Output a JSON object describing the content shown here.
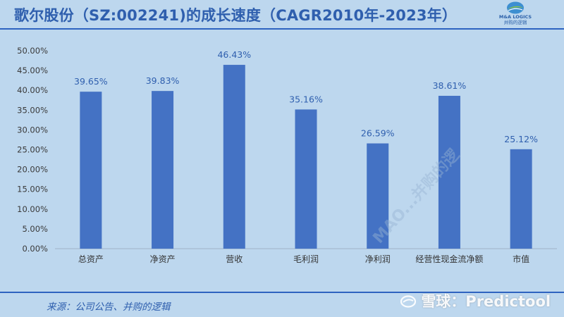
{
  "header": {
    "title": "歌尔股份（SZ:002241)的成长速度（CAGR2010年-2023年）",
    "logo_en": "M&A LOGICS",
    "logo_cn": "并购的逻辑"
  },
  "footer": {
    "source": "来源：公司公告、并购的逻辑",
    "watermark": "雪球：Predictool",
    "diagonal_watermark": "MAO...并购的逻"
  },
  "colors": {
    "bar": "#4472c4",
    "background": "#bdd7ee",
    "accent": "#2e63c0",
    "label": "#2f5fae"
  },
  "chart_data": {
    "type": "bar",
    "categories": [
      "总资产",
      "净资产",
      "营收",
      "毛利润",
      "净利润",
      "经营性现金流净额",
      "市值"
    ],
    "values": [
      39.65,
      39.83,
      46.43,
      35.16,
      26.59,
      38.61,
      25.12
    ],
    "data_labels": [
      "39.65%",
      "39.83%",
      "46.43%",
      "35.16%",
      "26.59%",
      "38.61%",
      "25.12%"
    ],
    "ylim": [
      0,
      50
    ],
    "yticks": [
      "0.00%",
      "5.00%",
      "10.00%",
      "15.00%",
      "20.00%",
      "25.00%",
      "30.00%",
      "35.00%",
      "40.00%",
      "45.00%",
      "50.00%"
    ],
    "xlabel": "",
    "ylabel": "",
    "grid": false,
    "legend": "none"
  }
}
